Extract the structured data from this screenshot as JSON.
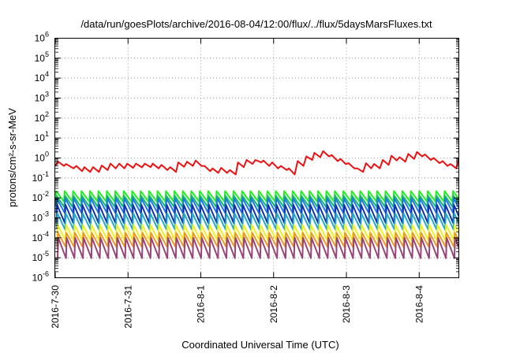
{
  "chart_data": {
    "type": "line",
    "title": "/data/run/goesPlots/archive/2016-08-04/12:00/flux/../flux/5daysMarsFluxes.txt",
    "xlabel": "Coordinated Universal Time (UTC)",
    "ylabel": "protons/cm²-s-sr-MeV",
    "yscale": "log",
    "ylim": [
      1e-06,
      1000000.0
    ],
    "xlim": [
      0,
      5.55
    ],
    "x_unit": "days since 2016-7-30",
    "x_ticks": [
      {
        "x": 0,
        "label": "2016-7-30"
      },
      {
        "x": 1,
        "label": "2016-7-31"
      },
      {
        "x": 2,
        "label": "2016-8-1"
      },
      {
        "x": 3,
        "label": "2016-8-2"
      },
      {
        "x": 4,
        "label": "2016-8-3"
      },
      {
        "x": 5,
        "label": "2016-8-4"
      }
    ],
    "y_ticks": [
      {
        "exp": -6,
        "base": "10",
        "sup": "-6"
      },
      {
        "exp": -5,
        "base": "10",
        "sup": "-5"
      },
      {
        "exp": -4,
        "base": "10",
        "sup": "-4"
      },
      {
        "exp": -3,
        "base": "10",
        "sup": "-3"
      },
      {
        "exp": -2,
        "base": "10",
        "sup": "-2"
      },
      {
        "exp": -1,
        "base": "10",
        "sup": "-1"
      },
      {
        "exp": 0,
        "base": "10",
        "sup": "0"
      },
      {
        "exp": 1,
        "base": "10",
        "sup": "1"
      },
      {
        "exp": 2,
        "base": "10",
        "sup": "2"
      },
      {
        "exp": 3,
        "base": "10",
        "sup": "3"
      },
      {
        "exp": 4,
        "base": "10",
        "sup": "4"
      },
      {
        "exp": 5,
        "base": "10",
        "sup": "5"
      },
      {
        "exp": 6,
        "base": "10",
        "sup": "6"
      }
    ],
    "grid": "dotted",
    "series": [
      {
        "color": "#ee1111",
        "x": [
          0.0,
          0.04,
          0.12,
          0.15,
          0.25,
          0.29,
          0.37,
          0.4,
          0.48,
          0.52,
          0.6,
          0.64,
          0.72,
          0.76,
          0.83,
          0.88,
          0.95,
          0.99,
          1.07,
          1.11,
          1.19,
          1.23,
          1.31,
          1.34,
          1.42,
          1.46,
          1.54,
          1.58,
          1.66,
          1.69,
          1.77,
          1.81,
          1.89,
          1.93,
          2.01,
          2.05,
          2.13,
          2.16,
          2.24,
          2.28,
          2.36,
          2.4,
          2.48,
          2.51,
          2.59,
          2.63,
          2.71,
          2.75,
          2.83,
          2.86,
          2.94,
          2.98,
          3.06,
          3.1,
          3.18,
          3.21,
          3.29,
          3.33,
          3.41,
          3.45,
          3.53,
          3.56,
          3.64,
          3.68,
          3.76,
          3.8,
          3.88,
          3.92,
          3.99,
          4.03,
          4.11,
          4.15,
          4.23,
          4.27,
          4.34,
          4.38,
          4.46,
          4.5,
          4.58,
          4.62,
          4.69,
          4.73,
          4.81,
          4.85,
          4.93,
          4.97,
          5.04,
          5.08,
          5.16,
          5.2,
          5.28,
          5.32,
          5.39,
          5.43,
          5.51,
          5.55
        ],
        "y": [
          0.4,
          0.65,
          0.4,
          0.5,
          0.3,
          0.4,
          0.22,
          0.35,
          0.2,
          0.35,
          0.2,
          0.42,
          0.25,
          0.52,
          0.3,
          0.52,
          0.3,
          0.52,
          0.32,
          0.52,
          0.34,
          0.52,
          0.35,
          0.52,
          0.3,
          0.45,
          0.25,
          0.35,
          0.2,
          0.6,
          0.36,
          0.65,
          0.4,
          0.75,
          0.4,
          0.4,
          0.22,
          0.3,
          0.18,
          0.32,
          0.18,
          0.25,
          0.15,
          0.6,
          0.35,
          0.8,
          0.5,
          0.8,
          0.6,
          0.75,
          0.4,
          0.6,
          0.3,
          0.4,
          0.25,
          0.3,
          0.15,
          0.7,
          0.4,
          1.2,
          0.8,
          1.8,
          1.1,
          2.2,
          1.2,
          1.4,
          0.7,
          0.9,
          0.5,
          0.55,
          0.3,
          0.3,
          0.2,
          0.55,
          0.3,
          0.5,
          0.3,
          0.8,
          0.45,
          1.3,
          0.75,
          1.1,
          0.65,
          1.6,
          0.9,
          2.0,
          1.2,
          1.5,
          0.8,
          1.0,
          0.55,
          0.7,
          0.4,
          0.5,
          0.3,
          1.1
        ]
      },
      {
        "color": "#22ee22",
        "spike_period": 0.116,
        "peak": 0.022,
        "trough": 0.0065
      },
      {
        "color": "#11bb66",
        "spike_period": 0.116,
        "peak": 0.013,
        "trough": 0.0035
      },
      {
        "color": "#2277ee",
        "spike_period": 0.116,
        "peak": 0.0095,
        "trough": 0.0018
      },
      {
        "color": "#1133aa",
        "spike_period": 0.116,
        "peak": 0.0045,
        "trough": 0.00055
      },
      {
        "color": "#22aacc",
        "spike_period": 0.116,
        "peak": 0.0017,
        "trough": 0.00026
      },
      {
        "color": "#eeee22",
        "spike_period": 0.116,
        "peak": 0.00045,
        "trough": 7.5e-05
      },
      {
        "color": "#ee9922",
        "spike_period": 0.116,
        "peak": 0.00018,
        "trough": 3.5e-05
      },
      {
        "color": "#994477",
        "spike_period": 0.116,
        "peak": 0.0001,
        "trough": 9.5e-06
      }
    ]
  }
}
